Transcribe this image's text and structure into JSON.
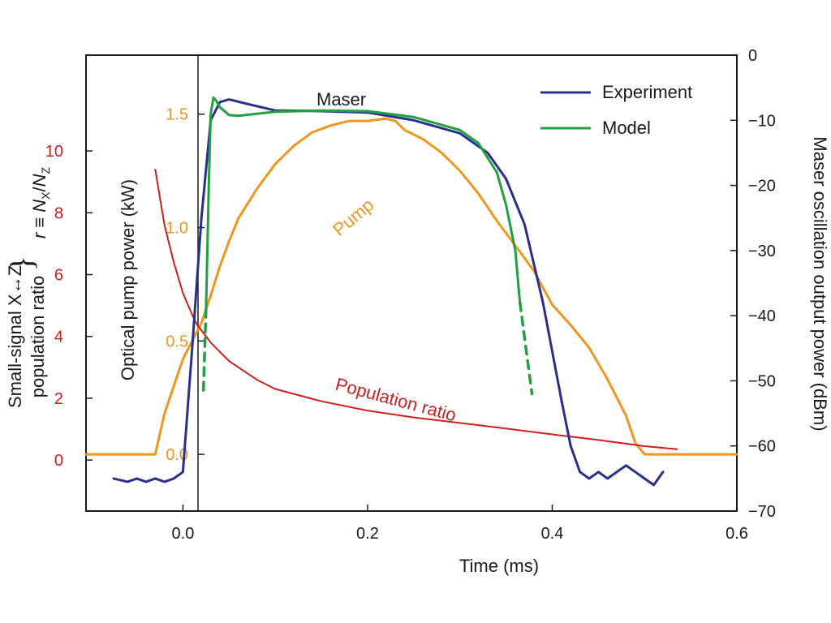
{
  "chart_data": {
    "type": "line",
    "x_axis": {
      "label": "Time (ms)",
      "range": [
        -0.105,
        0.6
      ],
      "ticks": [
        0.0,
        0.2,
        0.4,
        0.6
      ],
      "tick_labels": [
        "0.0",
        "0.2",
        "0.4",
        "0.6"
      ]
    },
    "y_axes": {
      "population_ratio": {
        "label_line1": "Small-signal X↔Z",
        "label_line2": "population ratio",
        "brace": "}",
        "formula": "r ≡ N_X/N_Z",
        "range": [
          -1.65,
          13.1
        ],
        "ticks": [
          0,
          2,
          4,
          6,
          8,
          10
        ],
        "tick_labels": [
          "0",
          "2",
          "4",
          "6",
          "8",
          "10"
        ],
        "color": "#cc1f1f"
      },
      "pump_power": {
        "label": "Optical pump power (kW)",
        "range": [
          -0.25,
          1.76
        ],
        "ticks": [
          0.0,
          0.5,
          1.0,
          1.5
        ],
        "tick_labels": [
          "0.0",
          "0.5",
          "1.0",
          "1.5"
        ],
        "color": "#f0961e"
      },
      "maser_power": {
        "label": "Maser oscillation output power (dBm)",
        "range": [
          -70,
          0
        ],
        "ticks": [
          0,
          -10,
          -20,
          -30,
          -40,
          -50,
          -60,
          -70
        ],
        "tick_labels": [
          "0",
          "−10",
          "−20",
          "−30",
          "−40",
          "−50",
          "−60",
          "−70"
        ],
        "color": "#1a1a1a"
      }
    },
    "legend": {
      "position": "top-right",
      "entries": [
        {
          "name": "Experiment",
          "color": "#2a2f8c"
        },
        {
          "name": "Model",
          "color": "#21a040"
        }
      ]
    },
    "annotations": {
      "maser": "Maser",
      "pump": "Pump",
      "population_ratio": "Population ratio"
    },
    "series": [
      {
        "name": "Pump",
        "axis": "pump_power",
        "color": "#f0961e",
        "x": [
          -0.105,
          -0.07,
          -0.03,
          -0.02,
          -0.01,
          0.0,
          0.01,
          0.02,
          0.03,
          0.04,
          0.05,
          0.06,
          0.08,
          0.1,
          0.12,
          0.14,
          0.16,
          0.18,
          0.2,
          0.22,
          0.23,
          0.24,
          0.26,
          0.28,
          0.3,
          0.32,
          0.34,
          0.36,
          0.38,
          0.4,
          0.42,
          0.44,
          0.46,
          0.48,
          0.49,
          0.5,
          0.55,
          0.6
        ],
        "y": [
          0.0,
          0.0,
          0.0,
          0.18,
          0.3,
          0.42,
          0.5,
          0.58,
          0.7,
          0.83,
          0.94,
          1.04,
          1.17,
          1.28,
          1.36,
          1.42,
          1.45,
          1.47,
          1.47,
          1.48,
          1.47,
          1.43,
          1.39,
          1.33,
          1.25,
          1.15,
          1.03,
          0.92,
          0.81,
          0.66,
          0.57,
          0.47,
          0.33,
          0.17,
          0.05,
          0.0,
          0.0,
          0.0
        ]
      },
      {
        "name": "Population ratio",
        "axis": "population_ratio",
        "color": "#cc1f1f",
        "x": [
          -0.03,
          -0.02,
          -0.01,
          0.0,
          0.01,
          0.015,
          0.03,
          0.05,
          0.08,
          0.1,
          0.15,
          0.2,
          0.25,
          0.3,
          0.35,
          0.4,
          0.45,
          0.5,
          0.535
        ],
        "y": [
          9.4,
          7.6,
          6.4,
          5.4,
          4.7,
          4.4,
          3.8,
          3.2,
          2.6,
          2.3,
          1.9,
          1.6,
          1.38,
          1.2,
          1.02,
          0.83,
          0.65,
          0.45,
          0.35
        ]
      },
      {
        "name": "Experiment",
        "axis": "maser_power",
        "color": "#2a2f8c",
        "x": [
          -0.075,
          -0.06,
          -0.05,
          -0.04,
          -0.03,
          -0.02,
          -0.01,
          0.0,
          0.01,
          0.02,
          0.03,
          0.04,
          0.05,
          0.07,
          0.1,
          0.15,
          0.2,
          0.25,
          0.3,
          0.33,
          0.35,
          0.37,
          0.39,
          0.41,
          0.42,
          0.43,
          0.44,
          0.45,
          0.46,
          0.47,
          0.48,
          0.49,
          0.5,
          0.51,
          0.52
        ],
        "y": [
          -65,
          -65.5,
          -65,
          -65.5,
          -65,
          -65.5,
          -65,
          -64,
          -45,
          -25,
          -10,
          -7.2,
          -6.8,
          -7.5,
          -8.5,
          -8.6,
          -8.8,
          -10,
          -12,
          -15,
          -19,
          -26,
          -38,
          -53,
          -60,
          -64,
          -65,
          -64,
          -65,
          -64,
          -63,
          -64,
          -65,
          -66,
          -64
        ]
      },
      {
        "name": "Model",
        "axis": "maser_power",
        "color": "#21a040",
        "x": [
          0.025,
          0.028,
          0.03,
          0.033,
          0.036,
          0.04,
          0.05,
          0.06,
          0.08,
          0.1,
          0.15,
          0.2,
          0.25,
          0.3,
          0.32,
          0.34,
          0.35,
          0.36,
          0.365
        ],
        "y": [
          -39,
          -20,
          -9,
          -6.5,
          -7,
          -8,
          -9.2,
          -9.3,
          -9,
          -8.7,
          -8.5,
          -8.6,
          -9.5,
          -11.5,
          -13.5,
          -18,
          -23,
          -30,
          -38
        ]
      },
      {
        "name": "Model (extrapolated)",
        "axis": "maser_power",
        "color": "#21a040",
        "dashed": true,
        "x": [
          0.025,
          0.022
        ],
        "y": [
          -39,
          -52
        ]
      },
      {
        "name": "Model (extrapolated)",
        "axis": "maser_power",
        "color": "#21a040",
        "dashed": true,
        "x": [
          0.365,
          0.378
        ],
        "y": [
          -38,
          -52
        ]
      }
    ]
  }
}
